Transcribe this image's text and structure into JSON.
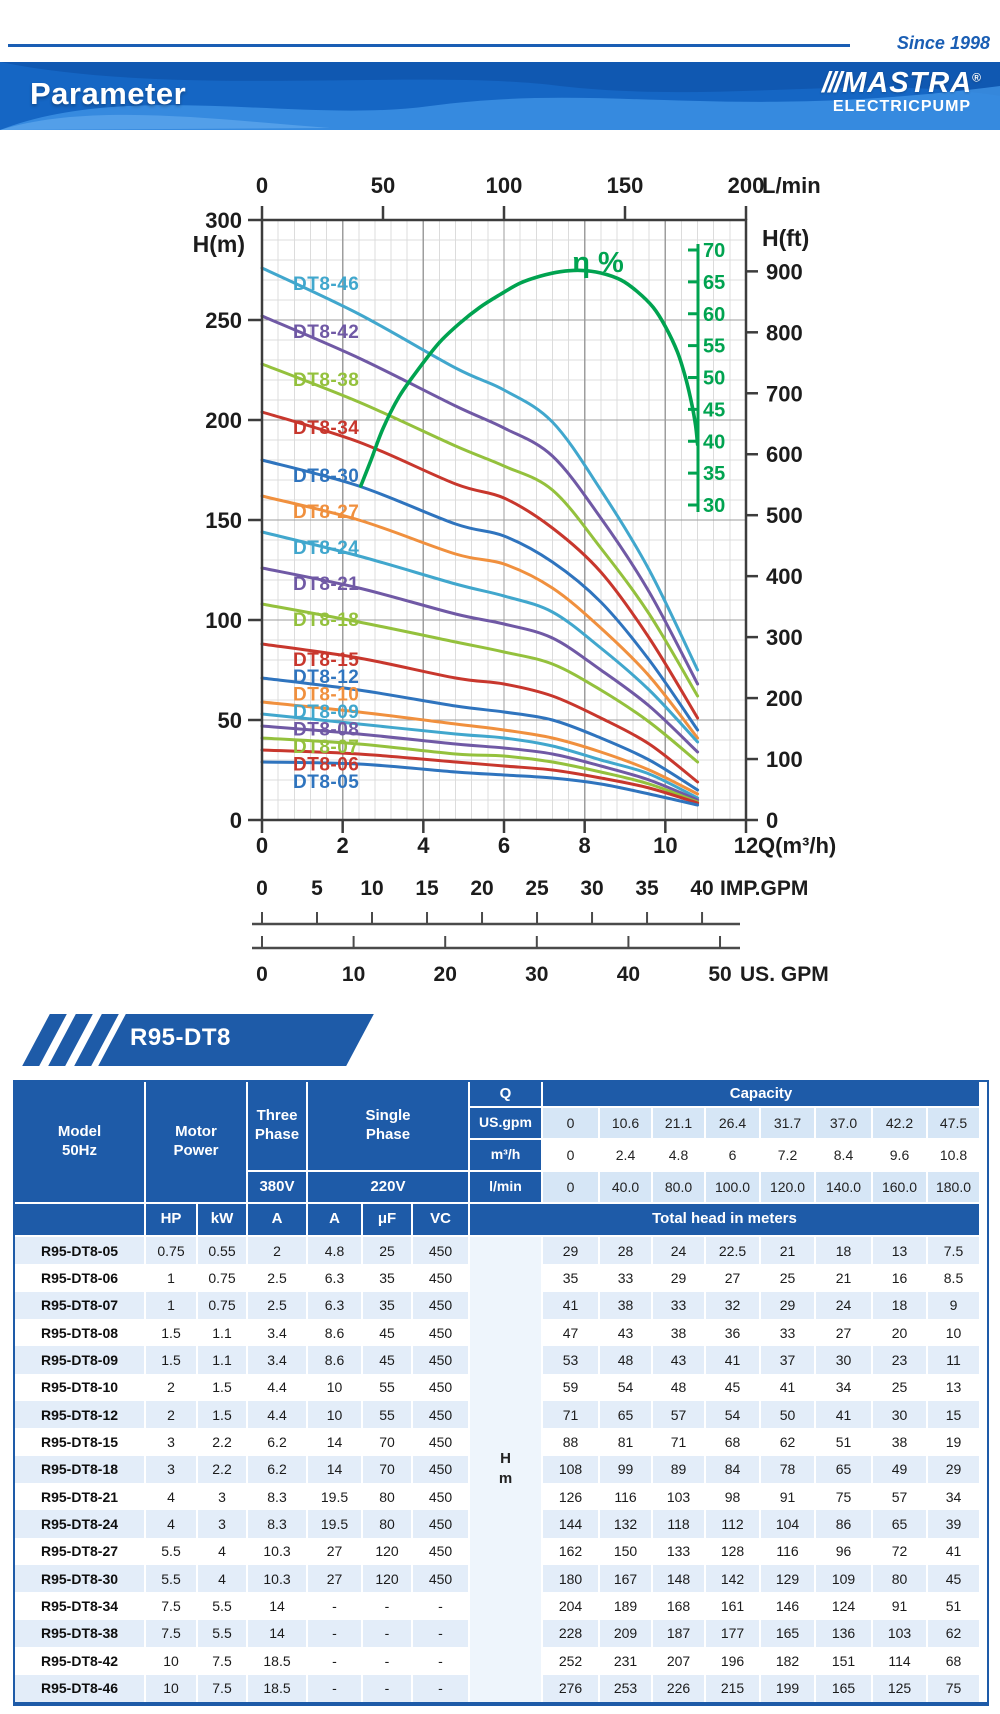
{
  "header": {
    "since": "Since 1998",
    "title": "Parameter",
    "brand": {
      "name": "MASTRA",
      "slashes": "///",
      "reg": "®",
      "sub": "ELECTRICPUMP"
    },
    "accent_blue": "#1a5eb4"
  },
  "section": {
    "label": "R95-DT8"
  },
  "chart_data": {
    "type": "line",
    "title": "",
    "x": [
      0,
      2.4,
      4.8,
      6,
      7.2,
      8.4,
      9.6,
      10.8
    ],
    "axes": {
      "left": {
        "label": "H(m)",
        "min": 0,
        "max": 300,
        "ticks": [
          0,
          50,
          100,
          150,
          200,
          250,
          300
        ]
      },
      "right": {
        "label": "H(ft)",
        "ticks": [
          0,
          100,
          200,
          300,
          400,
          500,
          600,
          700,
          800,
          900
        ]
      },
      "bottom": {
        "label": "Q(m³/h)",
        "min": 0,
        "max": 12,
        "ticks": [
          0,
          2,
          4,
          6,
          8,
          10,
          12
        ]
      },
      "top": {
        "label": "L/min",
        "ticks": [
          0,
          50,
          100,
          150,
          200
        ]
      },
      "imp": {
        "label": "IMP.GPM",
        "ticks": [
          0,
          5,
          10,
          15,
          20,
          25,
          30,
          35,
          40
        ]
      },
      "us": {
        "label": "US. GPM",
        "ticks": [
          0,
          10,
          20,
          30,
          40,
          50
        ]
      },
      "grid": true,
      "legend": "inline-labels"
    },
    "series": [
      {
        "name": "DT8-46",
        "color": "#41a7cd",
        "values": [
          276,
          253,
          226,
          215,
          199,
          165,
          125,
          75
        ]
      },
      {
        "name": "DT8-42",
        "color": "#7059a5",
        "values": [
          252,
          231,
          207,
          196,
          182,
          151,
          114,
          68
        ]
      },
      {
        "name": "DT8-38",
        "color": "#94c13d",
        "values": [
          228,
          209,
          187,
          177,
          165,
          136,
          103,
          62
        ]
      },
      {
        "name": "DT8-34",
        "color": "#c8372d",
        "values": [
          204,
          189,
          168,
          161,
          146,
          124,
          91,
          51
        ]
      },
      {
        "name": "DT8-30",
        "color": "#2f74be",
        "values": [
          180,
          167,
          148,
          142,
          129,
          109,
          80,
          45
        ]
      },
      {
        "name": "DT8-27",
        "color": "#f0903e",
        "values": [
          162,
          150,
          133,
          128,
          116,
          96,
          72,
          41
        ]
      },
      {
        "name": "DT8-24",
        "color": "#41a7cd",
        "values": [
          144,
          132,
          118,
          112,
          104,
          86,
          65,
          39
        ]
      },
      {
        "name": "DT8-21",
        "color": "#7059a5",
        "values": [
          126,
          116,
          103,
          98,
          91,
          75,
          57,
          34
        ]
      },
      {
        "name": "DT8-18",
        "color": "#94c13d",
        "values": [
          108,
          99,
          89,
          84,
          78,
          65,
          49,
          29
        ]
      },
      {
        "name": "DT8-15",
        "color": "#c8372d",
        "values": [
          88,
          81,
          71,
          68,
          62,
          51,
          38,
          19
        ]
      },
      {
        "name": "DT8-12",
        "color": "#2f74be",
        "values": [
          71,
          65,
          57,
          54,
          50,
          41,
          30,
          15
        ]
      },
      {
        "name": "DT8-10",
        "color": "#f0903e",
        "values": [
          59,
          54,
          48,
          45,
          41,
          34,
          25,
          13
        ]
      },
      {
        "name": "DT8-09",
        "color": "#41a7cd",
        "values": [
          53,
          48,
          43,
          41,
          37,
          30,
          23,
          11
        ]
      },
      {
        "name": "DT8-08",
        "color": "#7059a5",
        "values": [
          47,
          43,
          38,
          36,
          33,
          27,
          20,
          10
        ]
      },
      {
        "name": "DT8-07",
        "color": "#94c13d",
        "values": [
          41,
          38,
          33,
          32,
          29,
          24,
          18,
          9
        ]
      },
      {
        "name": "DT8-06",
        "color": "#c8372d",
        "values": [
          35,
          33,
          29,
          27,
          25,
          21,
          16,
          8.5
        ]
      },
      {
        "name": "DT8-05",
        "color": "#2f74be",
        "values": [
          29,
          28,
          24,
          22.5,
          21,
          18,
          13,
          7.5
        ]
      }
    ],
    "efficiency": {
      "label": "η %",
      "color": "#00a350",
      "axis_ticks": [
        70,
        65,
        60,
        55,
        50,
        45,
        40,
        35,
        30
      ],
      "points": [
        [
          2.45,
          33
        ],
        [
          2.7,
          37
        ],
        [
          3.0,
          42
        ],
        [
          3.4,
          47
        ],
        [
          3.9,
          51.5
        ],
        [
          4.4,
          55.5
        ],
        [
          4.9,
          58.5
        ],
        [
          5.4,
          61
        ],
        [
          5.9,
          63
        ],
        [
          6.4,
          64.8
        ],
        [
          6.9,
          65.9
        ],
        [
          7.4,
          66.6
        ],
        [
          7.9,
          66.8
        ],
        [
          8.4,
          66.4
        ],
        [
          8.9,
          65.3
        ],
        [
          9.3,
          63.5
        ],
        [
          9.7,
          61
        ],
        [
          10.0,
          58
        ],
        [
          10.3,
          54
        ],
        [
          10.5,
          50
        ],
        [
          10.65,
          46
        ],
        [
          10.75,
          42.5
        ],
        [
          10.8,
          39.5
        ]
      ]
    }
  },
  "table": {
    "headers": {
      "model": "Model\n50Hz",
      "motor": "Motor\nPower",
      "three": "Three\nPhase",
      "v380": "380V",
      "single": "Single\nPhase",
      "v220": "220V",
      "q": "Q",
      "capacity": "Capacity",
      "unit_rows": [
        "US.gpm",
        "m³/h",
        "l/min"
      ],
      "sub": [
        "HP",
        "kW",
        "A",
        "A",
        "μF",
        "VC"
      ],
      "total_head": "Total head in meters",
      "head_axis": "H\nm"
    },
    "capacity_values": [
      [
        "0",
        "10.6",
        "21.1",
        "26.4",
        "31.7",
        "37.0",
        "42.2",
        "47.5"
      ],
      [
        "0",
        "2.4",
        "4.8",
        "6",
        "7.2",
        "8.4",
        "9.6",
        "10.8"
      ],
      [
        "0",
        "40.0",
        "80.0",
        "100.0",
        "120.0",
        "140.0",
        "160.0",
        "180.0"
      ]
    ],
    "rows": [
      {
        "model": "R95-DT8-05",
        "hp": "0.75",
        "kw": "0.55",
        "a3": "2",
        "a1": "4.8",
        "uf": "25",
        "vc": "450",
        "heads": [
          "29",
          "28",
          "24",
          "22.5",
          "21",
          "18",
          "13",
          "7.5"
        ]
      },
      {
        "model": "R95-DT8-06",
        "hp": "1",
        "kw": "0.75",
        "a3": "2.5",
        "a1": "6.3",
        "uf": "35",
        "vc": "450",
        "heads": [
          "35",
          "33",
          "29",
          "27",
          "25",
          "21",
          "16",
          "8.5"
        ]
      },
      {
        "model": "R95-DT8-07",
        "hp": "1",
        "kw": "0.75",
        "a3": "2.5",
        "a1": "6.3",
        "uf": "35",
        "vc": "450",
        "heads": [
          "41",
          "38",
          "33",
          "32",
          "29",
          "24",
          "18",
          "9"
        ]
      },
      {
        "model": "R95-DT8-08",
        "hp": "1.5",
        "kw": "1.1",
        "a3": "3.4",
        "a1": "8.6",
        "uf": "45",
        "vc": "450",
        "heads": [
          "47",
          "43",
          "38",
          "36",
          "33",
          "27",
          "20",
          "10"
        ]
      },
      {
        "model": "R95-DT8-09",
        "hp": "1.5",
        "kw": "1.1",
        "a3": "3.4",
        "a1": "8.6",
        "uf": "45",
        "vc": "450",
        "heads": [
          "53",
          "48",
          "43",
          "41",
          "37",
          "30",
          "23",
          "11"
        ]
      },
      {
        "model": "R95-DT8-10",
        "hp": "2",
        "kw": "1.5",
        "a3": "4.4",
        "a1": "10",
        "uf": "55",
        "vc": "450",
        "heads": [
          "59",
          "54",
          "48",
          "45",
          "41",
          "34",
          "25",
          "13"
        ]
      },
      {
        "model": "R95-DT8-12",
        "hp": "2",
        "kw": "1.5",
        "a3": "4.4",
        "a1": "10",
        "uf": "55",
        "vc": "450",
        "heads": [
          "71",
          "65",
          "57",
          "54",
          "50",
          "41",
          "30",
          "15"
        ]
      },
      {
        "model": "R95-DT8-15",
        "hp": "3",
        "kw": "2.2",
        "a3": "6.2",
        "a1": "14",
        "uf": "70",
        "vc": "450",
        "heads": [
          "88",
          "81",
          "71",
          "68",
          "62",
          "51",
          "38",
          "19"
        ]
      },
      {
        "model": "R95-DT8-18",
        "hp": "3",
        "kw": "2.2",
        "a3": "6.2",
        "a1": "14",
        "uf": "70",
        "vc": "450",
        "heads": [
          "108",
          "99",
          "89",
          "84",
          "78",
          "65",
          "49",
          "29"
        ]
      },
      {
        "model": "R95-DT8-21",
        "hp": "4",
        "kw": "3",
        "a3": "8.3",
        "a1": "19.5",
        "uf": "80",
        "vc": "450",
        "heads": [
          "126",
          "116",
          "103",
          "98",
          "91",
          "75",
          "57",
          "34"
        ]
      },
      {
        "model": "R95-DT8-24",
        "hp": "4",
        "kw": "3",
        "a3": "8.3",
        "a1": "19.5",
        "uf": "80",
        "vc": "450",
        "heads": [
          "144",
          "132",
          "118",
          "112",
          "104",
          "86",
          "65",
          "39"
        ]
      },
      {
        "model": "R95-DT8-27",
        "hp": "5.5",
        "kw": "4",
        "a3": "10.3",
        "a1": "27",
        "uf": "120",
        "vc": "450",
        "heads": [
          "162",
          "150",
          "133",
          "128",
          "116",
          "96",
          "72",
          "41"
        ]
      },
      {
        "model": "R95-DT8-30",
        "hp": "5.5",
        "kw": "4",
        "a3": "10.3",
        "a1": "27",
        "uf": "120",
        "vc": "450",
        "heads": [
          "180",
          "167",
          "148",
          "142",
          "129",
          "109",
          "80",
          "45"
        ]
      },
      {
        "model": "R95-DT8-34",
        "hp": "7.5",
        "kw": "5.5",
        "a3": "14",
        "a1": "-",
        "uf": "-",
        "vc": "-",
        "heads": [
          "204",
          "189",
          "168",
          "161",
          "146",
          "124",
          "91",
          "51"
        ]
      },
      {
        "model": "R95-DT8-38",
        "hp": "7.5",
        "kw": "5.5",
        "a3": "14",
        "a1": "-",
        "uf": "-",
        "vc": "-",
        "heads": [
          "228",
          "209",
          "187",
          "177",
          "165",
          "136",
          "103",
          "62"
        ]
      },
      {
        "model": "R95-DT8-42",
        "hp": "10",
        "kw": "7.5",
        "a3": "18.5",
        "a1": "-",
        "uf": "-",
        "vc": "-",
        "heads": [
          "252",
          "231",
          "207",
          "196",
          "182",
          "151",
          "114",
          "68"
        ]
      },
      {
        "model": "R95-DT8-46",
        "hp": "10",
        "kw": "7.5",
        "a3": "18.5",
        "a1": "-",
        "uf": "-",
        "vc": "-",
        "heads": [
          "276",
          "253",
          "226",
          "215",
          "199",
          "165",
          "125",
          "75"
        ]
      }
    ]
  }
}
